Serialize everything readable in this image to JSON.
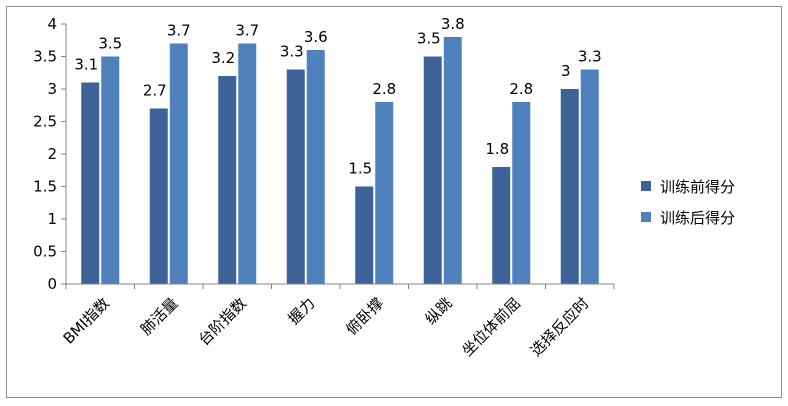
{
  "chart_data": {
    "type": "bar",
    "categories": [
      "BMI指数",
      "肺活量",
      "台阶指数",
      "握力",
      "俯卧撑",
      "纵跳",
      "坐位体前屈",
      "选择反应时"
    ],
    "series": [
      {
        "name": "训练前得分",
        "values": [
          3.1,
          2.7,
          3.2,
          3.3,
          1.5,
          3.5,
          1.8,
          3
        ],
        "color": "#3D6399"
      },
      {
        "name": "训练后得分",
        "values": [
          3.5,
          3.7,
          3.7,
          3.6,
          2.8,
          3.8,
          2.8,
          3.3
        ],
        "color": "#4F81BD"
      }
    ],
    "ylim": [
      0,
      4
    ],
    "yticks": [
      "0",
      "0.5",
      "1",
      "1.5",
      "2",
      "2.5",
      "3",
      "3.5",
      "4"
    ],
    "legend_position": "right",
    "grid": false,
    "data_labels": true
  }
}
